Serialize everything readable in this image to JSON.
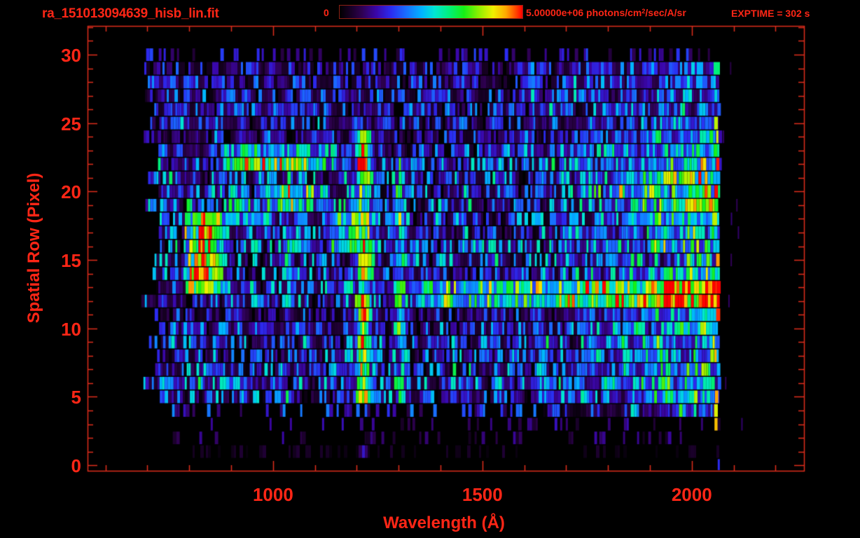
{
  "window": {
    "background": "#000000"
  },
  "colors": {
    "text_red": "#ff2616",
    "axis_red": "#df2d1c",
    "colorbar_border": "#8c2014"
  },
  "header": {
    "title": "ra_151013094639_hisb_lin.fit",
    "exptime_label": "EXPTIME = 302 s",
    "colorbar": {
      "min_label": "0",
      "max_label_prefix": "5.00000e+06 photons/cm",
      "max_label_sup": "2",
      "max_label_suffix": "/sec/A/sr"
    }
  },
  "chart_data": {
    "type": "heatmap",
    "title": "ra_151013094639_hisb_lin.fit",
    "xlabel": "Wavelength (Å)",
    "ylabel": "Spatial Row (Pixel)",
    "exposure_time_s": 302,
    "grid": false,
    "legend_position": "top-colorbar",
    "x_axis": {
      "min": 557,
      "max": 2268,
      "major_ticks": [
        1000,
        1500,
        2000
      ],
      "minor_tick_step": 100,
      "unit": "Angstrom"
    },
    "y_axis": {
      "min": -0.4,
      "max": 32.1,
      "major_ticks": [
        0,
        5,
        10,
        15,
        20,
        25,
        30
      ],
      "minor_tick_step": 1,
      "unit": "pixel"
    },
    "colorbar": {
      "min": 0,
      "max": 5000000,
      "units": "photons/cm^2/sec/A/sr",
      "stops": [
        [
          0.0,
          "#000000"
        ],
        [
          0.05,
          "#14001f"
        ],
        [
          0.12,
          "#2e0150"
        ],
        [
          0.2,
          "#3a06a8"
        ],
        [
          0.28,
          "#2b2bf0"
        ],
        [
          0.36,
          "#1a6aff"
        ],
        [
          0.45,
          "#00b4ff"
        ],
        [
          0.52,
          "#00e6d2"
        ],
        [
          0.6,
          "#00f07a"
        ],
        [
          0.68,
          "#16f016"
        ],
        [
          0.76,
          "#8cf000"
        ],
        [
          0.84,
          "#f0f000"
        ],
        [
          0.91,
          "#ffa800"
        ],
        [
          0.96,
          "#ff4e00"
        ],
        [
          1.0,
          "#ff0000"
        ]
      ]
    },
    "image_model": {
      "seed": 42,
      "wavelength_coverage": [
        690,
        2065
      ],
      "row_base_intensity": [
        0,
        0.02,
        0.05,
        0.06,
        0.1,
        0.3,
        0.32,
        0.3,
        0.29,
        0.3,
        0.28,
        0.2,
        0.32,
        0.34,
        0.3,
        0.31,
        0.33,
        0.32,
        0.31,
        0.33,
        0.34,
        0.33,
        0.31,
        0.29,
        0.2,
        0.24,
        0.25,
        0.24,
        0.23,
        0.2,
        0.08
      ],
      "features": [
        {
          "type": "vline",
          "wl": 1216,
          "sigma": 9,
          "wing": 22,
          "rows": [
            4.6,
            24.2
          ],
          "amp": 0.5,
          "name": "lyman-alpha-emission"
        },
        {
          "type": "vline",
          "wl": 1216,
          "sigma": 6,
          "wing": 10,
          "rows": [
            0.8,
            1.6
          ],
          "amp": 0.22,
          "name": "lyman-alpha-faint-row1"
        },
        {
          "type": "vline",
          "wl": 1304,
          "sigma": 7,
          "wing": 12,
          "rows": [
            5.0,
            22.5
          ],
          "amp": 0.2,
          "name": "oi-1304-emission"
        },
        {
          "type": "vline",
          "wl": 1042,
          "sigma": 6,
          "wing": 10,
          "rows": [
            12.0,
            21.0
          ],
          "amp": 0.15,
          "name": "lyman-beta-faint"
        },
        {
          "type": "blob",
          "wl": [
            788,
            885
          ],
          "rows": [
            12.8,
            18.6
          ],
          "amp": 0.48,
          "name": "left-bright-blob"
        },
        {
          "type": "blob",
          "wl": [
            885,
            1160
          ],
          "rows": [
            21.3,
            23.3
          ],
          "amp": 0.28,
          "name": "upper-arc-segment"
        },
        {
          "type": "blob",
          "wl": [
            975,
            1125
          ],
          "rows": [
            18.4,
            20.6
          ],
          "amp": 0.22,
          "name": "mid-arc-segment"
        },
        {
          "type": "blob",
          "wl": [
            895,
            1005
          ],
          "rows": [
            17.3,
            19.0
          ],
          "amp": 0.18,
          "name": "arc-segment-low"
        },
        {
          "type": "blob",
          "wl": [
            1130,
            1205
          ],
          "rows": [
            15.5,
            18.3
          ],
          "amp": 0.2,
          "name": "pre-line-cyan-patch"
        },
        {
          "type": "hband",
          "wl": [
            1335,
            2065
          ],
          "rows": [
            11.8,
            13.8
          ],
          "amp_start": 0.2,
          "amp_end": 0.46,
          "name": "bright-horizontal-band"
        },
        {
          "type": "region",
          "wl": [
            1600,
            2065
          ],
          "rows": [
            3.5,
            29.5
          ],
          "amp_end": 0.3,
          "row_boost": [
            [
              3.5,
              24.3,
              1.0
            ],
            [
              24.3,
              29.5,
              0.55
            ]
          ],
          "name": "right-bright-region"
        },
        {
          "type": "region",
          "wl": [
            1730,
            2065
          ],
          "rows": [
            18.6,
            21.4
          ],
          "amp_end": 0.2,
          "row_boost": [
            [
              18.6,
              21.4,
              1.0
            ]
          ],
          "name": "right-upper-streak"
        },
        {
          "type": "edge_spikes",
          "wl": [
            2052,
            2066
          ],
          "rows": [
            2,
            25
          ],
          "prob": 0.33,
          "amp": [
            0.78,
            1.0
          ],
          "name": "detector-edge-hot-pixels"
        },
        {
          "type": "stray",
          "wl": [
            2072,
            2120
          ],
          "rows": [
            2,
            29
          ],
          "prob": 0.25,
          "amp": 0.12,
          "name": "post-edge-stray-pixels"
        },
        {
          "type": "dash",
          "wl": 2062,
          "rows": [
            -0.4,
            0.45
          ],
          "amp": 0.28,
          "name": "edge-artifact-row0"
        }
      ]
    }
  }
}
